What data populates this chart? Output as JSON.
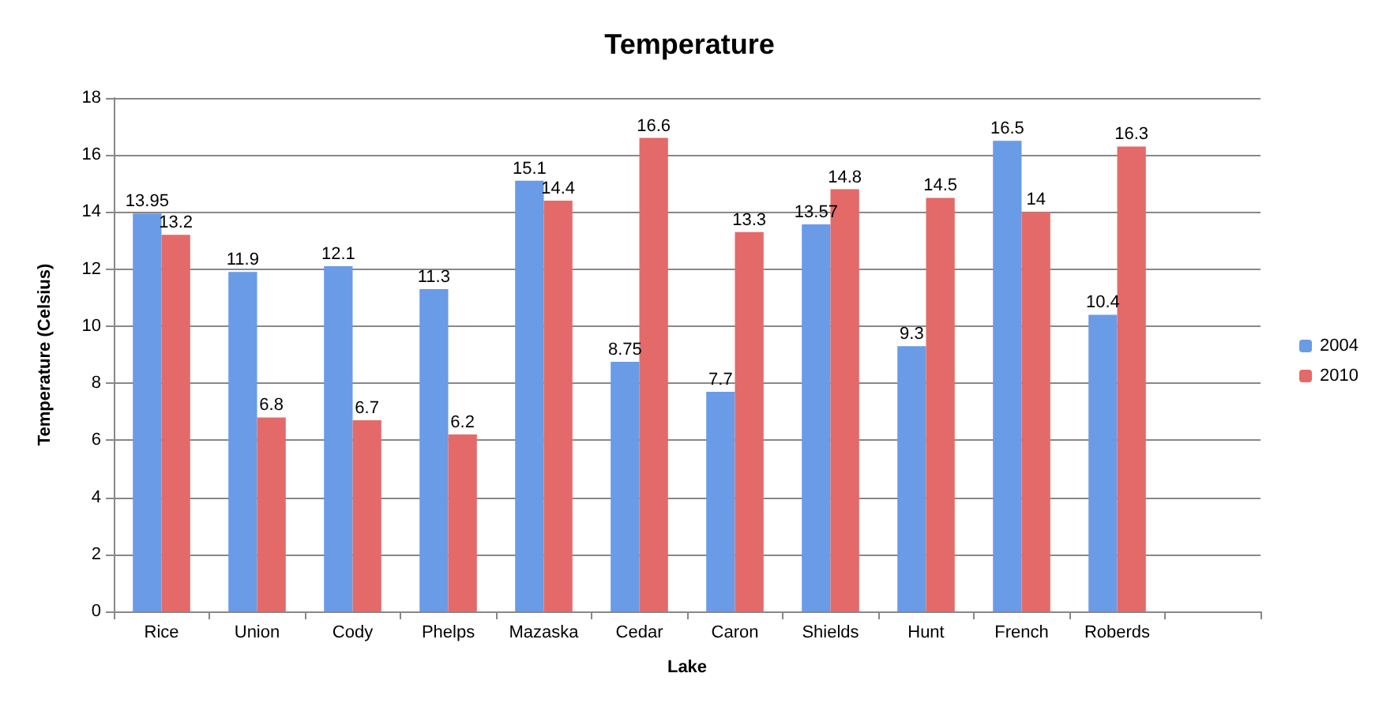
{
  "chart_data": {
    "type": "bar",
    "title": "Temperature",
    "xlabel": "Lake",
    "ylabel": "Temperature (Celsius)",
    "categories": [
      "Rice",
      "Union",
      "Cody",
      "Phelps",
      "Mazaska",
      "Cedar",
      "Caron",
      "Shields",
      "Hunt",
      "French",
      "Roberds",
      null
    ],
    "series": [
      {
        "name": "2004",
        "color": "#6a9be6",
        "values": [
          13.95,
          11.9,
          12.1,
          11.3,
          15.1,
          8.75,
          7.7,
          13.57,
          9.3,
          16.5,
          10.4,
          null
        ]
      },
      {
        "name": "2010",
        "color": "#e46a6a",
        "values": [
          13.2,
          6.8,
          6.7,
          6.2,
          14.4,
          16.6,
          13.3,
          14.8,
          14.5,
          14,
          16.3,
          null
        ]
      }
    ],
    "ylim": [
      0,
      18
    ],
    "yticks": [
      0,
      2,
      4,
      6,
      8,
      10,
      12,
      14,
      16,
      18
    ],
    "grid": "y",
    "legend": "right",
    "data_labels": true
  }
}
